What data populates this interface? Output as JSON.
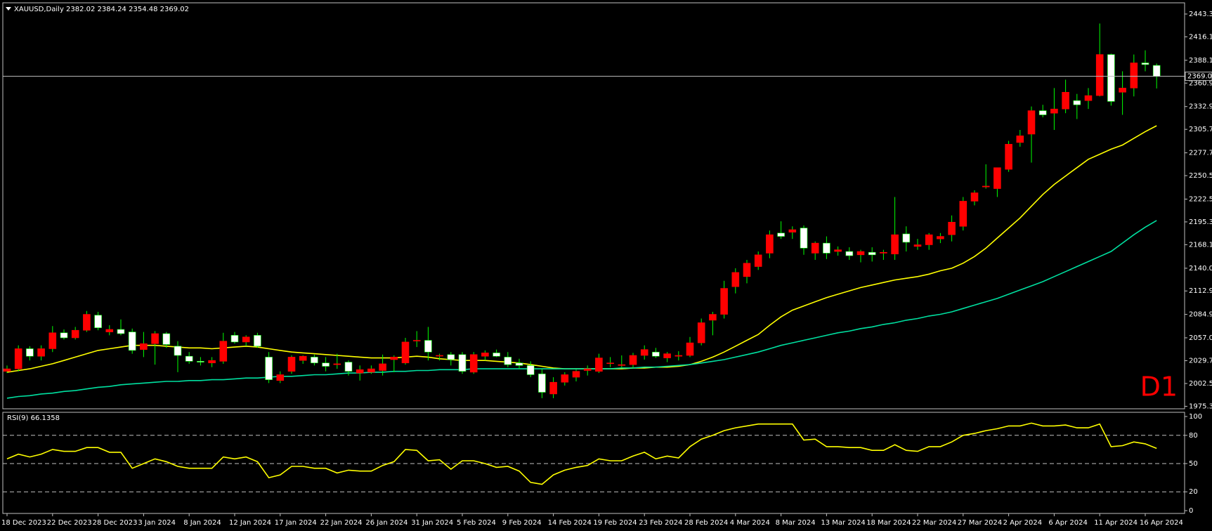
{
  "chart_data": [
    {
      "type": "candlestick",
      "title": "XAUUSD,Daily  2382.02 2384.24 2354.48 2369.02",
      "timeframe_label": "D1",
      "up_color": "#ff0000",
      "down_color": "#ffffff",
      "wick_color": "#00ff00",
      "categories": [
        "18 Dec 2023",
        null,
        null,
        null,
        "22 Dec 2023",
        null,
        null,
        null,
        "28 Dec 2023",
        null,
        null,
        null,
        "3 Jan 2024",
        null,
        null,
        null,
        "8 Jan 2024",
        null,
        null,
        null,
        "12 Jan 2024",
        null,
        null,
        null,
        "17 Jan 2024",
        null,
        null,
        null,
        "22 Jan 2024",
        null,
        null,
        null,
        "26 Jan 2024",
        null,
        null,
        null,
        "31 Jan 2024",
        null,
        null,
        null,
        "5 Feb 2024",
        null,
        null,
        null,
        "9 Feb 2024",
        null,
        null,
        null,
        "14 Feb 2024",
        null,
        null,
        null,
        "19 Feb 2024",
        null,
        null,
        null,
        "23 Feb 2024",
        null,
        null,
        null,
        "28 Feb 2024",
        null,
        null,
        null,
        "4 Mar 2024",
        null,
        null,
        null,
        "8 Mar 2024",
        null,
        null,
        null,
        "13 Mar 2024",
        null,
        null,
        null,
        "18 Mar 2024",
        null,
        null,
        null,
        "22 Mar 2024",
        null,
        null,
        null,
        "27 Mar 2024",
        null,
        null,
        null,
        "2 Apr 2024",
        null,
        null,
        null,
        "6 Apr 2024",
        null,
        null,
        null,
        "11 Apr 2024",
        null,
        null,
        null,
        "16 Apr 2024",
        null
      ],
      "open": [
        2017,
        2020,
        2044,
        2035,
        2044,
        2063,
        2057,
        2066,
        2084,
        2064,
        2067,
        2064,
        2043,
        2050,
        2062,
        2047,
        2035,
        2029,
        2027,
        2029,
        2060,
        2052,
        2060,
        2034,
        2006,
        2017,
        2030,
        2034,
        2027,
        2025,
        2028,
        2015,
        2016,
        2018,
        2031,
        2027,
        2054,
        2054,
        2036,
        2037,
        2037,
        2016,
        2035,
        2039,
        2034,
        2027,
        2024,
        2014,
        1990,
        2004,
        2010,
        2018,
        2017,
        2027,
        2024,
        2025,
        2036,
        2040,
        2033,
        2035,
        2036,
        2051,
        2078,
        2085,
        2118,
        2130,
        2142,
        2158,
        2182,
        2183,
        2188,
        2158,
        2170,
        2160,
        2160,
        2156,
        2159,
        2158,
        2157,
        2181,
        2166,
        2168,
        2175,
        2180,
        2190,
        2220,
        2237,
        2235,
        2258,
        2290,
        2300,
        2328,
        2325,
        2330,
        2340,
        2340,
        2346,
        2395,
        2350,
        2355,
        2385,
        2382.02
      ],
      "high": [
        2024,
        2048,
        2047,
        2048,
        2071,
        2067,
        2070,
        2089,
        2088,
        2072,
        2079,
        2068,
        2064,
        2065,
        2064,
        2053,
        2040,
        2034,
        2034,
        2063,
        2064,
        2060,
        2063,
        2040,
        2017,
        2036,
        2036,
        2037,
        2034,
        2038,
        2030,
        2024,
        2024,
        2037,
        2036,
        2057,
        2065,
        2070,
        2038,
        2040,
        2040,
        2040,
        2042,
        2043,
        2040,
        2032,
        2029,
        2020,
        2010,
        2016,
        2019,
        2024,
        2038,
        2034,
        2036,
        2039,
        2048,
        2045,
        2040,
        2041,
        2058,
        2080,
        2088,
        2125,
        2140,
        2150,
        2160,
        2185,
        2196,
        2190,
        2191,
        2172,
        2178,
        2166,
        2165,
        2162,
        2165,
        2162,
        2225,
        2190,
        2175,
        2182,
        2182,
        2203,
        2225,
        2233,
        2264,
        2260,
        2292,
        2305,
        2333,
        2335,
        2355,
        2365,
        2348,
        2355,
        2432,
        2396,
        2375,
        2395,
        2400,
        2384.24
      ],
      "low": [
        2015,
        2017,
        2030,
        2030,
        2040,
        2055,
        2055,
        2064,
        2066,
        2060,
        2060,
        2038,
        2034,
        2025,
        2045,
        2016,
        2026,
        2024,
        2022,
        2026,
        2050,
        2047,
        2045,
        2003,
        2003,
        2014,
        2026,
        2024,
        2017,
        2020,
        2012,
        2006,
        2014,
        2012,
        2016,
        2025,
        2046,
        2030,
        2030,
        2024,
        2014,
        2014,
        2030,
        2034,
        2022,
        2020,
        2010,
        1985,
        1985,
        2000,
        2005,
        2012,
        2015,
        2022,
        2021,
        2021,
        2031,
        2033,
        2028,
        2030,
        2034,
        2048,
        2060,
        2080,
        2110,
        2122,
        2138,
        2152,
        2175,
        2175,
        2156,
        2150,
        2151,
        2155,
        2150,
        2147,
        2148,
        2150,
        2150,
        2160,
        2162,
        2162,
        2170,
        2172,
        2185,
        2215,
        2235,
        2225,
        2255,
        2285,
        2266,
        2320,
        2305,
        2325,
        2318,
        2330,
        2345,
        2334,
        2323,
        2345,
        2375,
        2354.48
      ],
      "close": [
        2020,
        2044,
        2035,
        2044,
        2063,
        2057,
        2066,
        2085,
        2069,
        2067,
        2062,
        2042,
        2050,
        2062,
        2049,
        2036,
        2029,
        2028,
        2030,
        2053,
        2052,
        2058,
        2047,
        2007,
        2013,
        2034,
        2035,
        2027,
        2023,
        2026,
        2017,
        2019,
        2020,
        2026,
        2034,
        2052,
        2054,
        2040,
        2036,
        2031,
        2017,
        2037,
        2039,
        2035,
        2025,
        2024,
        2013,
        1992,
        2004,
        2013,
        2017,
        2020,
        2033,
        2027,
        2025,
        2036,
        2043,
        2035,
        2038,
        2036,
        2051,
        2075,
        2085,
        2116,
        2135,
        2146,
        2156,
        2180,
        2178,
        2186,
        2164,
        2170,
        2158,
        2162,
        2155,
        2160,
        2156,
        2159,
        2180,
        2171,
        2168,
        2180,
        2178,
        2195,
        2220,
        2230,
        2238,
        2260,
        2288,
        2298,
        2328,
        2323,
        2330,
        2350,
        2335,
        2346,
        2395,
        2339,
        2355,
        2385,
        2383,
        2369.02
      ],
      "lines": [
        {
          "color": "#ffff00",
          "values": [
            2016,
            2018,
            2020,
            2023,
            2026,
            2030,
            2034,
            2038,
            2042,
            2044,
            2046,
            2048,
            2048,
            2048,
            2047,
            2046,
            2045,
            2045,
            2044,
            2045,
            2046,
            2047,
            2046,
            2044,
            2042,
            2040,
            2039,
            2038,
            2037,
            2036,
            2035,
            2034,
            2033,
            2033,
            2033,
            2034,
            2035,
            2034,
            2032,
            2031,
            2030,
            2030,
            2030,
            2029,
            2028,
            2027,
            2025,
            2023,
            2021,
            2020,
            2020,
            2020,
            2020,
            2020,
            2020,
            2021,
            2021,
            2022,
            2022,
            2023,
            2025,
            2029,
            2034,
            2040,
            2047,
            2054,
            2061,
            2072,
            2082,
            2090,
            2095,
            2100,
            2105,
            2109,
            2113,
            2117,
            2120,
            2123,
            2126,
            2128,
            2130,
            2133,
            2137,
            2140,
            2146,
            2154,
            2164,
            2176,
            2188,
            2200,
            2214,
            2228,
            2240,
            2250,
            2260,
            2270,
            2276,
            2282,
            2287,
            2295,
            2303,
            2310
          ]
        },
        {
          "color": "#00e0a0",
          "values": [
            1985,
            1987,
            1988,
            1990,
            1991,
            1993,
            1994,
            1996,
            1998,
            1999,
            2001,
            2002,
            2003,
            2004,
            2005,
            2005,
            2006,
            2006,
            2007,
            2007,
            2008,
            2009,
            2009,
            2010,
            2011,
            2011,
            2012,
            2013,
            2013,
            2014,
            2015,
            2015,
            2016,
            2016,
            2017,
            2017,
            2018,
            2018,
            2019,
            2019,
            2019,
            2020,
            2020,
            2020,
            2020,
            2020,
            2020,
            2020,
            2020,
            2020,
            2020,
            2020,
            2020,
            2020,
            2021,
            2021,
            2022,
            2022,
            2023,
            2024,
            2025,
            2027,
            2029,
            2031,
            2034,
            2037,
            2040,
            2044,
            2048,
            2051,
            2054,
            2057,
            2060,
            2063,
            2065,
            2068,
            2070,
            2073,
            2075,
            2078,
            2080,
            2083,
            2085,
            2088,
            2092,
            2096,
            2100,
            2104,
            2109,
            2114,
            2119,
            2124,
            2130,
            2136,
            2142,
            2148,
            2154,
            2160,
            2170,
            2180,
            2189,
            2197
          ]
        }
      ],
      "last_price": {
        "value": 2369.02,
        "label": "2369.02"
      },
      "ylim": [
        1974,
        2455
      ],
      "yticks": [
        {
          "value": 1975.3,
          "label": "1975.30"
        },
        {
          "value": 2002.5,
          "label": "2002.50"
        },
        {
          "value": 2029.7,
          "label": "2029.70"
        },
        {
          "value": 2057,
          "label": "2057.00"
        },
        {
          "value": 2084.9,
          "label": "2084.90"
        },
        {
          "value": 2112.9,
          "label": "2112.90"
        },
        {
          "value": 2140,
          "label": "2140.00"
        },
        {
          "value": 2168.1,
          "label": "2168.10"
        },
        {
          "value": 2195.3,
          "label": "2195.30"
        },
        {
          "value": 2222.5,
          "label": "2222.50"
        },
        {
          "value": 2250.5,
          "label": "2250.50"
        },
        {
          "value": 2277.7,
          "label": "2277.70"
        },
        {
          "value": 2305.7,
          "label": "2305.70"
        },
        {
          "value": 2332.9,
          "label": "2332.90"
        },
        {
          "value": 2360.9,
          "label": "2360.90"
        },
        {
          "value": 2388.1,
          "label": "2388.10"
        },
        {
          "value": 2416.1,
          "label": "2416.10"
        },
        {
          "value": 2443.3,
          "label": "2443.30"
        }
      ]
    },
    {
      "type": "line",
      "title": "RSI(9) 66.1358",
      "series": [
        {
          "color": "#ffff00",
          "values": [
            55,
            60,
            57,
            60,
            65,
            63,
            63,
            67,
            67,
            62,
            62,
            45,
            50,
            55,
            52,
            47,
            45,
            45,
            45,
            57,
            55,
            57,
            52,
            35,
            38,
            47,
            47,
            45,
            45,
            40,
            43,
            42,
            42,
            48,
            52,
            65,
            64,
            53,
            54,
            44,
            53,
            53,
            50,
            46,
            47,
            42,
            30,
            28,
            38,
            43,
            46,
            48,
            55,
            53,
            53,
            58,
            62,
            55,
            58,
            56,
            68,
            76,
            80,
            85,
            88,
            90,
            92,
            92,
            92,
            92,
            75,
            76,
            68,
            68,
            67,
            67,
            64,
            64,
            70,
            64,
            63,
            68,
            68,
            73,
            80,
            82,
            85,
            87,
            90,
            90,
            93,
            90,
            90,
            91,
            88,
            88,
            92,
            68,
            69,
            73,
            71,
            66.1358
          ]
        }
      ],
      "levels": [
        80,
        50,
        20
      ],
      "ylim": [
        0,
        100
      ],
      "yticks": [
        100,
        80,
        50,
        20,
        0
      ]
    }
  ]
}
